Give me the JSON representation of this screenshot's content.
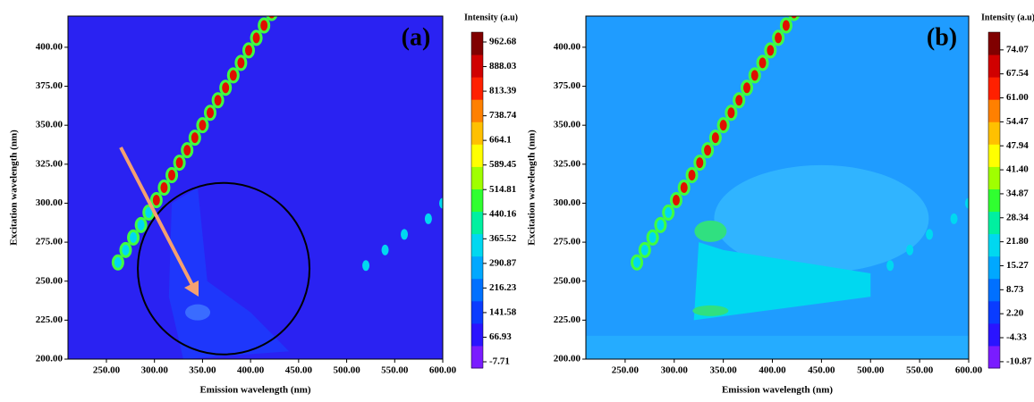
{
  "chart_data": [
    {
      "type": "contour",
      "title": "(a)",
      "xlabel": "Emission wavelength (nm)",
      "ylabel": "Excitation wavelength (nm)",
      "xlim": [
        210,
        600
      ],
      "ylim": [
        200,
        420
      ],
      "xticks": [
        {
          "value": 250,
          "label": "250.00"
        },
        {
          "value": 300,
          "label": "300.00"
        },
        {
          "value": 350,
          "label": "350.00"
        },
        {
          "value": 400,
          "label": "400.00"
        },
        {
          "value": 450,
          "label": "450.00"
        },
        {
          "value": 500,
          "label": "500.00"
        },
        {
          "value": 550,
          "label": "550.00"
        },
        {
          "value": 600,
          "label": "600.00"
        }
      ],
      "yticks": [
        {
          "value": 200,
          "label": "200.00"
        },
        {
          "value": 225,
          "label": "225.00"
        },
        {
          "value": 250,
          "label": "250.00"
        },
        {
          "value": 275,
          "label": "275.00"
        },
        {
          "value": 300,
          "label": "300.00"
        },
        {
          "value": 325,
          "label": "325.00"
        },
        {
          "value": 350,
          "label": "350.00"
        },
        {
          "value": 375,
          "label": "375.00"
        },
        {
          "value": 400,
          "label": "400.00"
        }
      ],
      "colorbar_title": "Intensity (a.u)",
      "clim": [
        -26.7,
        992.5
      ],
      "cticks": [
        962.68,
        888.03,
        813.39,
        738.74,
        664.1,
        589.45,
        514.81,
        440.16,
        365.52,
        290.87,
        216.23,
        141.58,
        66.93,
        -7.71
      ],
      "colors": [
        "#7a1cff",
        "#2a14ff",
        "#0a3cff",
        "#0070ff",
        "#00a8ff",
        "#00d8f0",
        "#00f0a0",
        "#30ff30",
        "#a0ff00",
        "#ffff00",
        "#ffc000",
        "#ff8000",
        "#ff2000",
        "#d00000",
        "#800000"
      ]
    },
    {
      "type": "contour",
      "title": "(b)",
      "xlabel": "Emission wavelength (nm)",
      "ylabel": "Excitation wavelength (nm)",
      "xlim": [
        210,
        600
      ],
      "ylim": [
        200,
        420
      ],
      "xticks": [
        {
          "value": 250,
          "label": "250.00"
        },
        {
          "value": 300,
          "label": "300.00"
        },
        {
          "value": 350,
          "label": "350.00"
        },
        {
          "value": 400,
          "label": "400.00"
        },
        {
          "value": 450,
          "label": "450.00"
        },
        {
          "value": 500,
          "label": "500.00"
        },
        {
          "value": 550,
          "label": "550.00"
        },
        {
          "value": 600,
          "label": "600.00"
        }
      ],
      "yticks": [
        {
          "value": 200,
          "label": "200.00"
        },
        {
          "value": 225,
          "label": "225.00"
        },
        {
          "value": 250,
          "label": "250.00"
        },
        {
          "value": 275,
          "label": "275.00"
        },
        {
          "value": 300,
          "label": "300.00"
        },
        {
          "value": 325,
          "label": "325.00"
        },
        {
          "value": 350,
          "label": "350.00"
        },
        {
          "value": 375,
          "label": "375.00"
        },
        {
          "value": 400,
          "label": "400.00"
        }
      ],
      "colorbar_title": "Intensity (a.u)",
      "clim": [
        -12.6,
        78.9
      ],
      "cticks": [
        74.07,
        67.54,
        {
          "value": 61,
          "label": "61.00"
        },
        54.47,
        47.94,
        {
          "value": 41.4,
          "label": "41.40"
        },
        34.87,
        28.34,
        {
          "value": 21.8,
          "label": "21.80"
        },
        15.27,
        8.73,
        {
          "value": 2.2,
          "label": "2.20"
        },
        -4.33,
        -10.87
      ],
      "colors": [
        "#7a1cff",
        "#2a14ff",
        "#0a3cff",
        "#0070ff",
        "#00a8ff",
        "#00d8f0",
        "#00f0a0",
        "#30ff30",
        "#a0ff00",
        "#ffff00",
        "#ffc000",
        "#ff8000",
        "#ff2000",
        "#d00000",
        "#800000"
      ]
    }
  ]
}
